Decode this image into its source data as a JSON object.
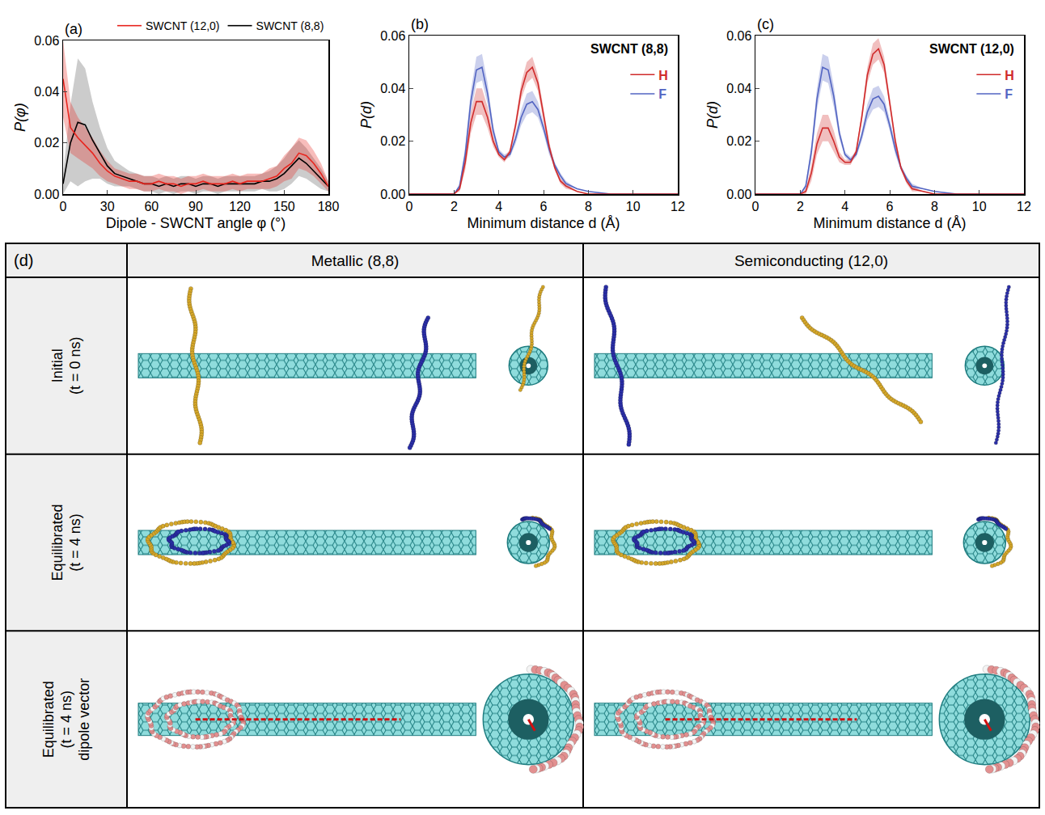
{
  "chart_data": [
    {
      "type": "line",
      "panel": "(a)",
      "xlabel": "Dipole - SWCNT angle φ (°)",
      "ylabel": "P(φ)",
      "xlim": [
        0,
        180
      ],
      "xticks": [
        0,
        30,
        60,
        90,
        120,
        150,
        180
      ],
      "ylim": [
        0,
        0.06
      ],
      "yticks": [
        {
          "value": 0,
          "label": "0.00"
        },
        0.02,
        0.04,
        0.06
      ],
      "grid": false,
      "legend": "top",
      "x": [
        0,
        5,
        10,
        15,
        20,
        25,
        30,
        35,
        40,
        45,
        50,
        55,
        60,
        65,
        70,
        75,
        80,
        85,
        90,
        95,
        100,
        105,
        110,
        115,
        120,
        125,
        130,
        135,
        140,
        145,
        150,
        155,
        160,
        165,
        170,
        175,
        180
      ],
      "series": [
        {
          "name": "SWCNT (8,8)",
          "color": "#000000",
          "values": [
            0.004,
            0.02,
            0.028,
            0.027,
            0.021,
            0.016,
            0.011,
            0.008,
            0.007,
            0.006,
            0.005,
            0.004,
            0.004,
            0.003,
            0.004,
            0.003,
            0.004,
            0.004,
            0.003,
            0.004,
            0.004,
            0.003,
            0.004,
            0.004,
            0.004,
            0.004,
            0.004,
            0.005,
            0.005,
            0.006,
            0.008,
            0.011,
            0.014,
            0.012,
            0.009,
            0.006,
            0.003
          ],
          "error": [
            0.004,
            0.015,
            0.025,
            0.022,
            0.015,
            0.01,
            0.007,
            0.005,
            0.004,
            0.003,
            0.003,
            0.003,
            0.003,
            0.003,
            0.003,
            0.003,
            0.003,
            0.003,
            0.003,
            0.003,
            0.003,
            0.003,
            0.003,
            0.003,
            0.003,
            0.003,
            0.003,
            0.003,
            0.004,
            0.005,
            0.006,
            0.007,
            0.007,
            0.006,
            0.005,
            0.004,
            0.002
          ]
        },
        {
          "name": "SWCNT (12,0)",
          "color": "#e8251e",
          "values": [
            0.045,
            0.026,
            0.022,
            0.019,
            0.016,
            0.012,
            0.009,
            0.007,
            0.006,
            0.005,
            0.005,
            0.004,
            0.004,
            0.005,
            0.004,
            0.004,
            0.003,
            0.004,
            0.004,
            0.005,
            0.004,
            0.004,
            0.004,
            0.005,
            0.004,
            0.005,
            0.005,
            0.005,
            0.006,
            0.007,
            0.01,
            0.012,
            0.016,
            0.015,
            0.012,
            0.008,
            0.003
          ],
          "error": [
            0.015,
            0.01,
            0.008,
            0.007,
            0.006,
            0.005,
            0.004,
            0.003,
            0.003,
            0.003,
            0.003,
            0.003,
            0.003,
            0.003,
            0.003,
            0.003,
            0.003,
            0.003,
            0.003,
            0.003,
            0.003,
            0.003,
            0.003,
            0.003,
            0.003,
            0.003,
            0.003,
            0.003,
            0.004,
            0.004,
            0.005,
            0.006,
            0.006,
            0.006,
            0.005,
            0.004,
            0.002
          ]
        }
      ]
    },
    {
      "type": "line",
      "panel": "(b)",
      "annotations": [
        "SWCNT (8,8)"
      ],
      "xlabel": "Minimum distance d (Å)",
      "ylabel": "P(d)",
      "xlim": [
        0,
        12
      ],
      "xticks": [
        0,
        2,
        4,
        6,
        8,
        10,
        12
      ],
      "ylim": [
        0,
        0.06
      ],
      "yticks": [
        {
          "value": 0,
          "label": "0.00"
        },
        0.02,
        0.04,
        0.06
      ],
      "grid": false,
      "legend": "upper right",
      "x": [
        0,
        1,
        2,
        2.25,
        2.5,
        2.75,
        3,
        3.25,
        3.5,
        3.75,
        4,
        4.25,
        4.5,
        4.75,
        5,
        5.25,
        5.5,
        5.75,
        6,
        6.25,
        6.5,
        6.75,
        7,
        7.5,
        8,
        9,
        10,
        11,
        12
      ],
      "series": [
        {
          "name": "F",
          "color": "#5264c2",
          "values": [
            0,
            0,
            0,
            0.003,
            0.015,
            0.035,
            0.047,
            0.048,
            0.038,
            0.024,
            0.016,
            0.014,
            0.015,
            0.021,
            0.029,
            0.034,
            0.035,
            0.032,
            0.025,
            0.017,
            0.011,
            0.007,
            0.004,
            0.002,
            0.001,
            0,
            0,
            0,
            0
          ],
          "error": [
            0,
            0,
            0,
            0.001,
            0.003,
            0.004,
            0.005,
            0.005,
            0.004,
            0.002,
            0.001,
            0.001,
            0.001,
            0.002,
            0.003,
            0.004,
            0.004,
            0.003,
            0.002,
            0.002,
            0.001,
            0.001,
            0.001,
            0,
            0,
            0,
            0,
            0,
            0
          ]
        },
        {
          "name": "H",
          "color": "#d02b2b",
          "values": [
            0,
            0,
            0,
            0.002,
            0.012,
            0.027,
            0.035,
            0.035,
            0.029,
            0.02,
            0.015,
            0.013,
            0.016,
            0.026,
            0.039,
            0.046,
            0.048,
            0.042,
            0.03,
            0.018,
            0.01,
            0.005,
            0.003,
            0.001,
            0,
            0,
            0,
            0,
            0
          ],
          "error": [
            0,
            0,
            0,
            0.001,
            0.003,
            0.004,
            0.005,
            0.005,
            0.004,
            0.002,
            0.001,
            0.001,
            0.001,
            0.002,
            0.003,
            0.004,
            0.004,
            0.003,
            0.002,
            0.002,
            0.001,
            0.001,
            0.001,
            0,
            0,
            0,
            0,
            0,
            0
          ]
        }
      ]
    },
    {
      "type": "line",
      "panel": "(c)",
      "annotations": [
        "SWCNT (12,0)"
      ],
      "xlabel": "Minimum distance d (Å)",
      "ylabel": "P(d)",
      "xlim": [
        0,
        12
      ],
      "xticks": [
        0,
        2,
        4,
        6,
        8,
        10,
        12
      ],
      "ylim": [
        0,
        0.06
      ],
      "yticks": [
        {
          "value": 0,
          "label": "0.00"
        },
        0.02,
        0.04,
        0.06
      ],
      "grid": false,
      "legend": "upper right",
      "x": [
        0,
        1,
        2,
        2.25,
        2.5,
        2.75,
        3,
        3.25,
        3.5,
        3.75,
        4,
        4.25,
        4.5,
        4.75,
        5,
        5.25,
        5.5,
        5.75,
        6,
        6.25,
        6.5,
        6.75,
        7,
        7.5,
        8,
        9,
        10,
        11,
        12
      ],
      "series": [
        {
          "name": "F",
          "color": "#5264c2",
          "values": [
            0,
            0,
            0,
            0.003,
            0.016,
            0.036,
            0.048,
            0.047,
            0.037,
            0.023,
            0.015,
            0.013,
            0.015,
            0.022,
            0.031,
            0.036,
            0.037,
            0.034,
            0.026,
            0.017,
            0.01,
            0.006,
            0.003,
            0.002,
            0.001,
            0,
            0,
            0,
            0
          ],
          "error": [
            0,
            0,
            0,
            0.001,
            0.003,
            0.004,
            0.005,
            0.005,
            0.004,
            0.002,
            0.001,
            0.001,
            0.001,
            0.002,
            0.003,
            0.004,
            0.004,
            0.003,
            0.002,
            0.002,
            0.001,
            0.001,
            0.001,
            0,
            0,
            0,
            0,
            0,
            0
          ]
        },
        {
          "name": "H",
          "color": "#d02b2b",
          "values": [
            0,
            0,
            0,
            0.001,
            0.008,
            0.019,
            0.025,
            0.025,
            0.02,
            0.014,
            0.012,
            0.012,
            0.016,
            0.029,
            0.045,
            0.053,
            0.055,
            0.049,
            0.035,
            0.02,
            0.01,
            0.005,
            0.002,
            0.001,
            0,
            0,
            0,
            0,
            0
          ],
          "error": [
            0,
            0,
            0,
            0.001,
            0.003,
            0.004,
            0.005,
            0.005,
            0.004,
            0.002,
            0.001,
            0.001,
            0.001,
            0.002,
            0.003,
            0.004,
            0.004,
            0.003,
            0.002,
            0.002,
            0.001,
            0.001,
            0.001,
            0,
            0,
            0,
            0,
            0,
            0
          ]
        }
      ]
    }
  ],
  "table": {
    "label": "(d)",
    "columns": [
      "Metallic (8,8)",
      "Semiconducting (12,0)"
    ],
    "rows": [
      [
        "Initial",
        "(t = 0 ns)"
      ],
      [
        "Equilibrated",
        "(t = 4 ns)"
      ],
      [
        "Equilibrated",
        "(t = 4 ns)",
        "dipole vector"
      ]
    ]
  }
}
